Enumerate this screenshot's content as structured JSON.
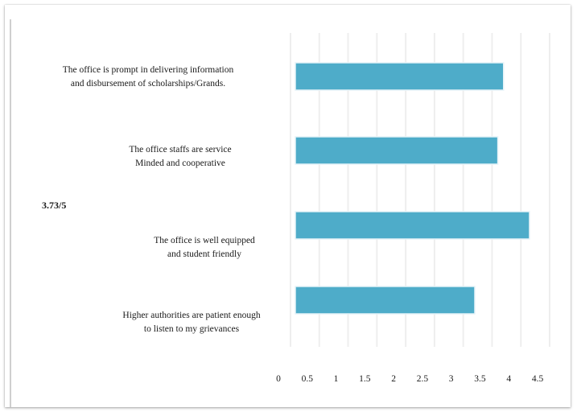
{
  "score": "3.73/5",
  "chart_data": {
    "type": "bar",
    "orientation": "horizontal",
    "categories": [
      [
        "The office is prompt in delivering information",
        "and disbursement  of scholarships/Grands."
      ],
      [
        "The office staffs are service",
        "Minded  and  cooperative"
      ],
      [
        "The office is well equipped",
        "and student friendly"
      ],
      [
        "Higher authorities are patient enough",
        "to listen to my grievances"
      ]
    ],
    "values": [
      3.7,
      3.6,
      4.15,
      3.2
    ],
    "xticks": [
      "0",
      "0.5",
      "1",
      "1.5",
      "2",
      "2.5",
      "3",
      "3.5",
      "4",
      "4.5"
    ],
    "xlim": [
      0,
      4.5
    ],
    "grid": true,
    "bar_color": "#4eacc9",
    "title": "",
    "xlabel": "",
    "ylabel": ""
  }
}
